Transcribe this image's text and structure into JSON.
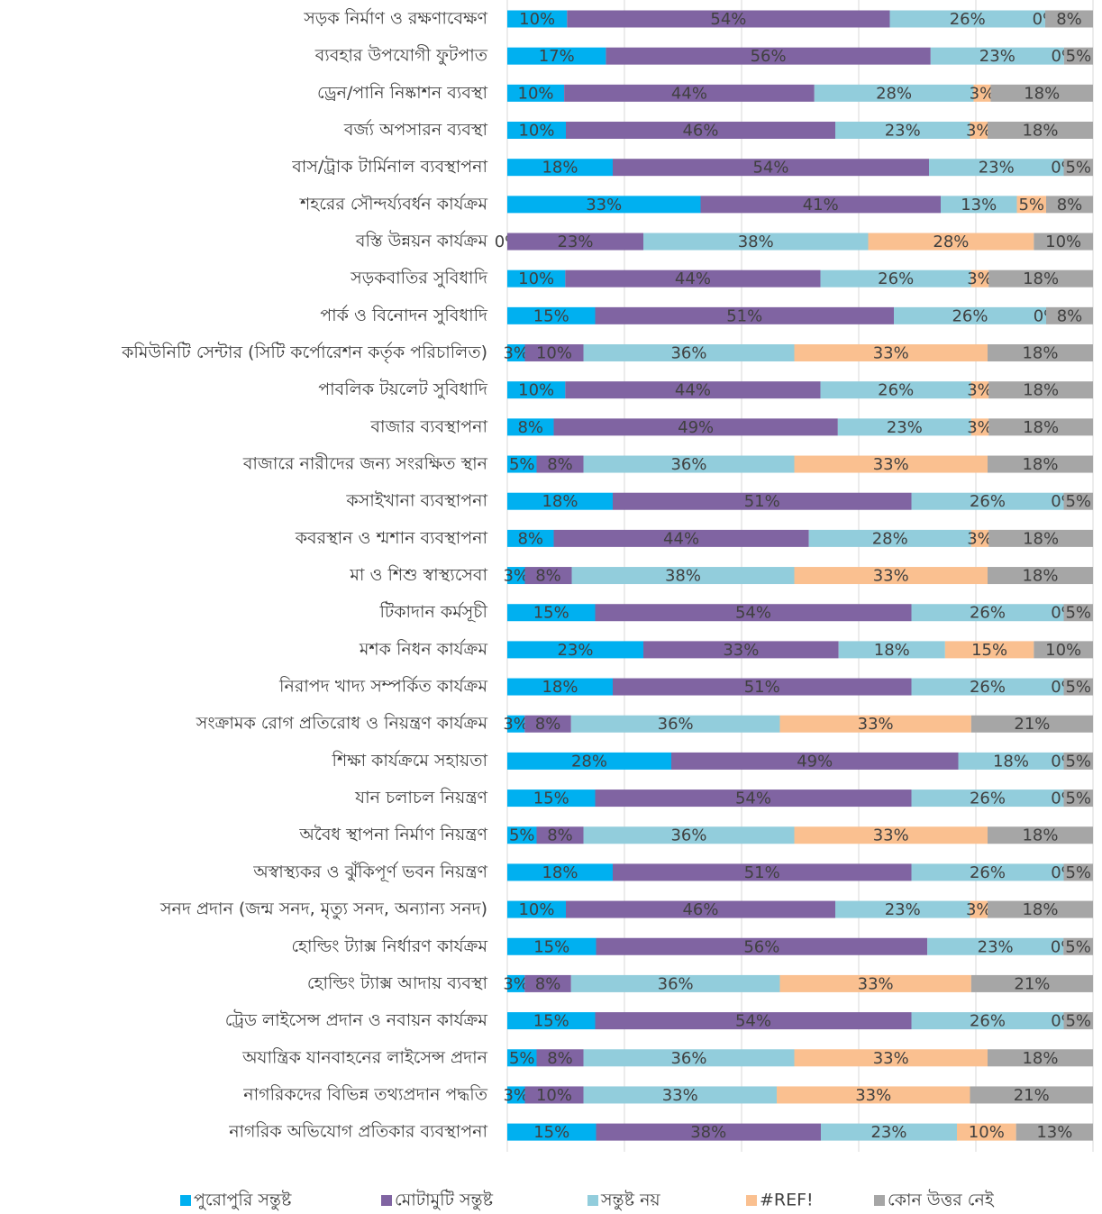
{
  "chart_data": {
    "type": "bar",
    "orientation": "horizontal",
    "stacked": "percent",
    "categories": [
      "সড়ক নির্মাণ ও রক্ষণাবেক্ষণ",
      "ব্যবহার উপযোগী ফুটপাত",
      "ড্রেন/পানি নিষ্কাশন ব্যবস্থা",
      "বর্জ্য অপসারন ব্যবস্থা",
      "বাস/ট্রাক টার্মিনাল ব্যবস্থাপনা",
      "শহরের সৌন্দর্য্যবর্ধন কার্যক্রম",
      "বস্তি উন্নয়ন কার্যক্রম",
      "সড়কবাতির সুবিধাদি",
      "পার্ক ও বিনোদন সুবিধাদি",
      "কমিউনিটি সেন্টার (সিটি কর্পোরেশন কর্তৃক পরিচালিত)",
      "পাবলিক টয়লেট সুবিধাদি",
      "বাজার ব্যবস্থাপনা",
      "বাজারে নারীদের জন্য সংরক্ষিত স্থান",
      "কসাইখানা ব্যবস্থাপনা",
      "কবরস্থান ও শ্মশান ব্যবস্থাপনা",
      "মা ও শিশু স্বাস্থ্যসেবা",
      "টিকাদান কর্মসূচী",
      "মশক নিধন কার্যক্রম",
      "নিরাপদ খাদ্য সম্পর্কিত কার্যক্রম",
      "সংক্রামক রোগ প্রতিরোধ ও নিয়ন্ত্রণ কার্যক্রম",
      "শিক্ষা কার্যক্রমে সহায়তা",
      "যান চলাচল নিয়ন্ত্রণ",
      "অবৈধ স্থাপনা নির্মাণ নিয়ন্ত্রণ",
      "অস্বাস্থ্যকর ও ঝুঁকিপূর্ণ ভবন নিয়ন্ত্রণ",
      "সনদ প্রদান (জন্ম সনদ, মৃত্যু সনদ, অন্যান্য সনদ)",
      "হোল্ডিং ট্যাক্স নির্ধারণ কার্যক্রম",
      "হোল্ডিং ট্যাক্স আদায় ব্যবস্থা",
      "ট্রেড লাইসেন্স প্রদান ও নবায়ন কার্যক্রম",
      "অযান্ত্রিক যানবাহনের লাইসেন্স প্রদান",
      "নাগরিকদের বিভিন্ন তথ্যপ্রদান পদ্ধতি",
      "নাগরিক অভিযোগ প্রতিকার ব্যবস্থাপনা"
    ],
    "series": [
      {
        "name": "পুরোপুরি সন্তুষ্ট",
        "color": "#00b0f0",
        "values": [
          10,
          17,
          10,
          10,
          18,
          33,
          0,
          10,
          15,
          3,
          10,
          8,
          5,
          18,
          8,
          3,
          15,
          23,
          18,
          3,
          28,
          15,
          5,
          18,
          10,
          15,
          3,
          15,
          5,
          3,
          15
        ],
        "value_labels": [
          "10%",
          "17%",
          "10%",
          "10%",
          "18%",
          "33%",
          "0%",
          "10%",
          "15%",
          "3%",
          "10%",
          "8%",
          "5%",
          "18%",
          "8%",
          "3%",
          "15%",
          "23%",
          "18%",
          "3%",
          "28%",
          "15%",
          "5%",
          "18%",
          "10%",
          "15%",
          "3%",
          "15%",
          "5%",
          "3%",
          "15%"
        ]
      },
      {
        "name": "মোটামুটি সন্তুষ্ট",
        "color": "#8064a2",
        "values": [
          54,
          56,
          44,
          46,
          54,
          41,
          23,
          44,
          51,
          10,
          44,
          49,
          8,
          51,
          44,
          8,
          54,
          33,
          51,
          8,
          49,
          54,
          8,
          51,
          46,
          56,
          8,
          54,
          8,
          10,
          38
        ],
        "value_labels": [
          "54%",
          "56%",
          "44%",
          "46%",
          "54%",
          "41%",
          "23%",
          "44%",
          "51%",
          "10%",
          "44%",
          "49%",
          "8%",
          "51%",
          "44%",
          "8%",
          "54%",
          "33%",
          "51%",
          "8%",
          "49%",
          "54%",
          "8%",
          "51%",
          "46%",
          "56%",
          "8%",
          "54%",
          "8%",
          "10%",
          "38%"
        ]
      },
      {
        "name": "সন্তুষ্ট নয়",
        "color": "#92cddc",
        "values": [
          26,
          23,
          28,
          23,
          23,
          13,
          38,
          26,
          26,
          36,
          26,
          23,
          36,
          26,
          28,
          38,
          26,
          18,
          26,
          36,
          18,
          26,
          36,
          26,
          23,
          23,
          36,
          26,
          36,
          33,
          23
        ],
        "value_labels": [
          "26%",
          "23%",
          "28%",
          "23%",
          "23%",
          "13%",
          "38%",
          "26%",
          "26%",
          "36%",
          "26%",
          "23%",
          "36%",
          "26%",
          "28%",
          "38%",
          "26%",
          "18%",
          "26%",
          "36%",
          "18%",
          "26%",
          "36%",
          "26%",
          "23%",
          "23%",
          "36%",
          "26%",
          "36%",
          "33%",
          "23%"
        ]
      },
      {
        "name": "#REF!",
        "color": "#fac090",
        "values": [
          0,
          0,
          3,
          3,
          0,
          5,
          28,
          3,
          0,
          33,
          3,
          3,
          33,
          0,
          3,
          33,
          0,
          15,
          0,
          33,
          0,
          0,
          33,
          0,
          3,
          0,
          33,
          0,
          33,
          33,
          10
        ],
        "value_labels": [
          "0%",
          "0%",
          "3%",
          "3%",
          "0%",
          "5%",
          "28%",
          "3%",
          "0%",
          "33%",
          "3%",
          "3%",
          "33%",
          "0%",
          "3%",
          "33%",
          "0%",
          "15%",
          "0%",
          "33%",
          "0%",
          "0%",
          "33%",
          "0%",
          "3%",
          "0%",
          "33%",
          "0%",
          "33%",
          "33%",
          "10%"
        ]
      },
      {
        "name": "কোন উত্তর নেই",
        "color": "#a6a6a6",
        "values": [
          8,
          5,
          18,
          18,
          5,
          8,
          10,
          18,
          8,
          18,
          18,
          18,
          18,
          5,
          18,
          18,
          5,
          10,
          5,
          21,
          5,
          5,
          18,
          5,
          18,
          5,
          21,
          5,
          18,
          21,
          13
        ],
        "value_labels": [
          "8%",
          "5%",
          "18%",
          "18%",
          "5%",
          "8%",
          "10%",
          "18%",
          "8%",
          "18%",
          "18%",
          "18%",
          "18%",
          "5%",
          "18%",
          "18%",
          "5%",
          "10%",
          "5%",
          "21%",
          "5%",
          "5%",
          "18%",
          "5%",
          "18%",
          "5%",
          "21%",
          "5%",
          "18%",
          "21%",
          "13%"
        ]
      }
    ],
    "xlim": [
      0,
      100
    ],
    "xticks": [
      0,
      20,
      40,
      60,
      80,
      100
    ],
    "grid": true,
    "legend": "bottom"
  }
}
